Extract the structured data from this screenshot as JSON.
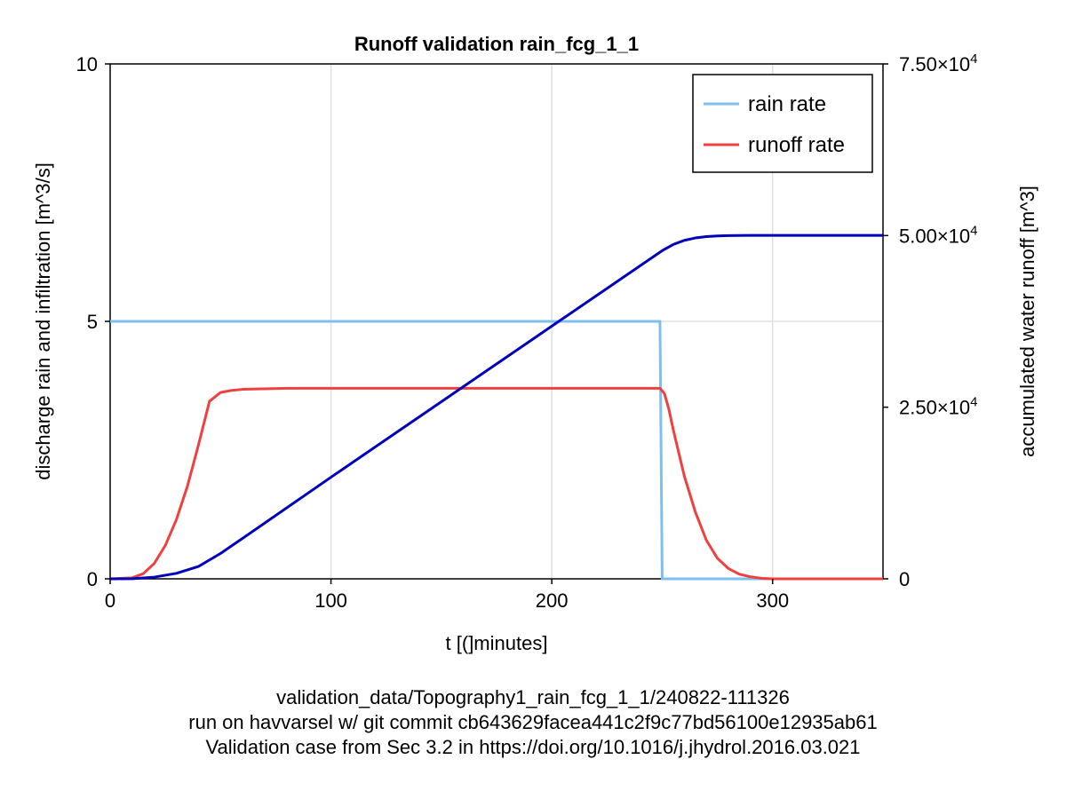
{
  "chart_data": {
    "type": "line",
    "title": "Runoff validation rain_fcg_1_1",
    "xlabel": "t [(]minutes]",
    "ylabel_left": "discharge rain and infiltration [m^3/s]",
    "ylabel_right": "accumulated water runoff [m^3]",
    "xlim": [
      0,
      350
    ],
    "ylim_left": [
      0,
      10
    ],
    "ylim_right": [
      0,
      75000
    ],
    "x_ticks": [
      "0",
      "100",
      "200",
      "300"
    ],
    "x_tick_values": [
      0,
      100,
      200,
      300
    ],
    "y_left_ticks": [
      "0",
      "5",
      "10"
    ],
    "y_left_tick_values": [
      0,
      5,
      10
    ],
    "y_right_tick_values": [
      0,
      25000,
      50000,
      75000
    ],
    "y_right_ticks": [
      {
        "mantissa": "0",
        "exp": ""
      },
      {
        "mantissa": "2.50×10",
        "exp": "4"
      },
      {
        "mantissa": "5.00×10",
        "exp": "4"
      },
      {
        "mantissa": "7.50×10",
        "exp": "4"
      }
    ],
    "grid": true,
    "legend": "top-right",
    "colors": {
      "rain": "#7fbfee",
      "runoff": "#ef4040",
      "accumulated": "#0000bb"
    },
    "series": [
      {
        "name": "rain rate",
        "axis": "left",
        "x": [
          0,
          249,
          250,
          350
        ],
        "y": [
          5,
          5,
          0,
          0
        ]
      },
      {
        "name": "runoff rate",
        "axis": "left",
        "x": [
          0,
          10,
          15,
          20,
          25,
          30,
          35,
          40,
          45,
          50,
          55,
          60,
          80,
          150,
          249,
          251,
          253,
          255,
          260,
          265,
          270,
          275,
          280,
          285,
          290,
          295,
          300,
          310,
          350
        ],
        "y": [
          0,
          0.02,
          0.1,
          0.3,
          0.65,
          1.15,
          1.8,
          2.6,
          3.45,
          3.62,
          3.66,
          3.68,
          3.7,
          3.7,
          3.7,
          3.6,
          3.3,
          2.9,
          2.0,
          1.3,
          0.75,
          0.4,
          0.2,
          0.09,
          0.04,
          0.01,
          0,
          0,
          0
        ]
      },
      {
        "name": "",
        "axis": "right",
        "x": [
          0,
          10,
          20,
          30,
          40,
          50,
          60,
          100,
          150,
          200,
          245,
          250,
          255,
          260,
          265,
          270,
          275,
          280,
          290,
          300,
          350
        ],
        "y": [
          0,
          20,
          250,
          800,
          1800,
          3700,
          5900,
          14800,
          25800,
          36800,
          46700,
          47800,
          48700,
          49300,
          49650,
          49850,
          49950,
          50000,
          50020,
          50030,
          50030
        ]
      }
    ]
  },
  "captions": [
    "validation_data/Topography1_rain_fcg_1_1/240822-111326",
    "run on havvarsel w/ git commit cb643629facea441c2f9c77bd56100e12935ab61",
    "Validation case from Sec 3.2 in https://doi.org/10.1016/j.jhydrol.2016.03.021"
  ]
}
